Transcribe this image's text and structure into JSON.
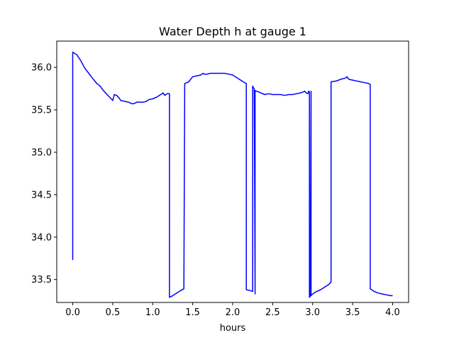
{
  "chart_data": {
    "type": "line",
    "title": "Water Depth h at gauge 1",
    "xlabel": "hours",
    "ylabel": "",
    "xlim": [
      -0.2,
      4.2
    ],
    "ylim": [
      33.23,
      36.31
    ],
    "xticks": [
      0.0,
      0.5,
      1.0,
      1.5,
      2.0,
      2.5,
      3.0,
      3.5,
      4.0
    ],
    "xtick_labels": [
      "0.0",
      "0.5",
      "1.0",
      "1.5",
      "2.0",
      "2.5",
      "3.0",
      "3.5",
      "4.0"
    ],
    "yticks": [
      33.5,
      34.0,
      34.5,
      35.0,
      35.5,
      36.0
    ],
    "ytick_labels": [
      "33.5",
      "34.0",
      "34.5",
      "35.0",
      "35.5",
      "36.0"
    ],
    "grid": false,
    "series": [
      {
        "color": "#0000ff",
        "x": [
          0.0,
          0.0,
          0.05,
          0.1,
          0.15,
          0.2,
          0.25,
          0.3,
          0.33,
          0.35,
          0.38,
          0.42,
          0.45,
          0.48,
          0.5,
          0.52,
          0.55,
          0.58,
          0.6,
          0.65,
          0.7,
          0.72,
          0.75,
          0.78,
          0.8,
          0.85,
          0.88,
          0.92,
          0.95,
          1.0,
          1.05,
          1.1,
          1.12,
          1.13,
          1.15,
          1.18,
          1.2,
          1.21,
          1.21,
          1.25,
          1.3,
          1.35,
          1.39,
          1.4,
          1.45,
          1.5,
          1.55,
          1.6,
          1.63,
          1.65,
          1.68,
          1.72,
          1.78,
          1.85,
          1.9,
          1.95,
          2.0,
          2.05,
          2.1,
          2.15,
          2.17,
          2.17,
          2.22,
          2.25,
          2.25,
          2.26,
          2.27,
          2.28,
          2.28,
          2.29,
          2.3,
          2.35,
          2.4,
          2.45,
          2.5,
          2.55,
          2.6,
          2.65,
          2.7,
          2.75,
          2.8,
          2.85,
          2.88,
          2.9,
          2.92,
          2.94,
          2.95,
          2.96,
          2.96,
          2.97,
          2.98,
          2.98,
          3.0,
          3.05,
          3.1,
          3.15,
          3.2,
          3.23,
          3.23,
          3.3,
          3.35,
          3.4,
          3.42,
          3.43,
          3.45,
          3.5,
          3.55,
          3.6,
          3.65,
          3.7,
          3.72,
          3.72,
          3.77,
          3.82,
          3.87,
          3.92,
          3.97,
          4.0
        ],
        "y": [
          33.73,
          36.18,
          36.15,
          36.08,
          35.99,
          35.93,
          35.87,
          35.81,
          35.79,
          35.77,
          35.73,
          35.69,
          35.66,
          35.63,
          35.61,
          35.68,
          35.67,
          35.64,
          35.61,
          35.6,
          35.59,
          35.58,
          35.57,
          35.58,
          35.59,
          35.59,
          35.59,
          35.6,
          35.62,
          35.63,
          35.65,
          35.68,
          35.69,
          35.7,
          35.67,
          35.69,
          35.69,
          35.69,
          33.29,
          33.31,
          33.34,
          33.37,
          33.39,
          35.81,
          35.83,
          35.89,
          35.9,
          35.91,
          35.93,
          35.92,
          35.92,
          35.93,
          35.93,
          35.93,
          35.93,
          35.92,
          35.91,
          35.88,
          35.85,
          35.82,
          35.81,
          33.38,
          33.37,
          33.36,
          35.78,
          35.76,
          35.75,
          33.33,
          35.73,
          35.72,
          35.72,
          35.7,
          35.68,
          35.69,
          35.68,
          35.68,
          35.68,
          35.67,
          35.68,
          35.68,
          35.69,
          35.7,
          35.71,
          35.72,
          35.7,
          35.69,
          35.72,
          35.71,
          33.29,
          33.3,
          35.72,
          33.31,
          33.33,
          33.36,
          33.38,
          33.41,
          33.44,
          33.47,
          35.83,
          35.84,
          35.86,
          35.87,
          35.88,
          35.89,
          35.86,
          35.85,
          35.84,
          35.83,
          35.82,
          35.81,
          35.8,
          33.39,
          33.36,
          33.34,
          33.33,
          33.32,
          33.31,
          33.31
        ]
      }
    ]
  }
}
